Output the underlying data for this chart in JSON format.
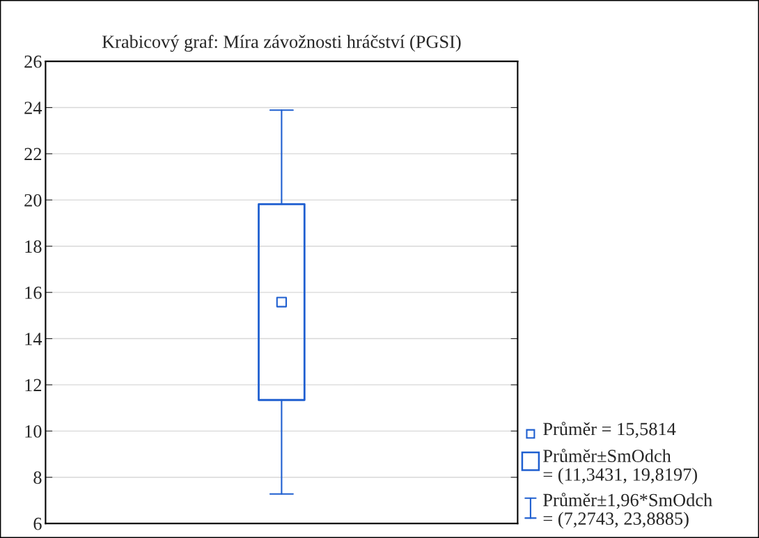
{
  "chart_data": {
    "type": "box",
    "title": "Krabicový graf: Míra závožnosti hráčství (PGSI)",
    "categories": [
      null
    ],
    "boxes": [
      {
        "low": 7.2743,
        "q1": 11.3431,
        "median": 15.5814,
        "q3": 19.8197,
        "high": 23.8885
      }
    ],
    "color": "#1f5fd0",
    "ylim": [
      6,
      26
    ],
    "yticks": [
      6,
      8,
      10,
      12,
      14,
      16,
      18,
      20,
      22,
      24,
      26
    ],
    "grid": "y",
    "annotations": [
      "Průměr = 15,5814",
      "Průměr±SmOdch\n= (11,3431, 19,8197)",
      "Průměr±1,96*SmOdch\n= (7,2743, 23,8885)"
    ]
  }
}
